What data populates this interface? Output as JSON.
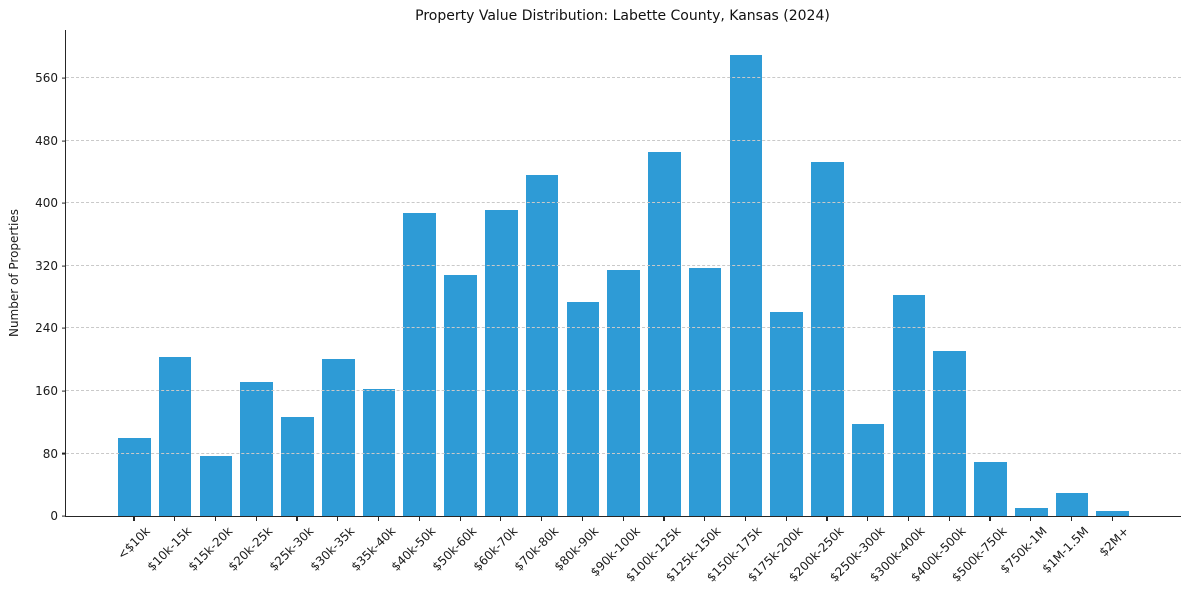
{
  "chart_data": {
    "type": "bar",
    "title": "Property Value Distribution: Labette County, Kansas (2024)",
    "xlabel": "",
    "ylabel": "Number of Properties",
    "categories": [
      "<$10k",
      "$10k-15k",
      "$15k-20k",
      "$20k-25k",
      "$25k-30k",
      "$30k-35k",
      "$35k-40k",
      "$40k-50k",
      "$50k-60k",
      "$60k-70k",
      "$70k-80k",
      "$80k-90k",
      "$90k-100k",
      "$100k-125k",
      "$125k-150k",
      "$150k-175k",
      "$175k-200k",
      "$200k-250k",
      "$250k-300k",
      "$300k-400k",
      "$400k-500k",
      "$500k-750k",
      "$750k-1M",
      "$1M-1.5M",
      "$2M+"
    ],
    "values": [
      100,
      204,
      77,
      172,
      127,
      201,
      162,
      388,
      308,
      392,
      436,
      274,
      315,
      466,
      318,
      590,
      261,
      453,
      118,
      283,
      211,
      69,
      10,
      29,
      6
    ],
    "yticks": [
      0,
      80,
      160,
      240,
      320,
      400,
      480,
      560
    ],
    "ylim": [
      0,
      622
    ],
    "bar_color": "#2E9BD6",
    "grid": "dashed-horizontal",
    "legend": "none"
  }
}
